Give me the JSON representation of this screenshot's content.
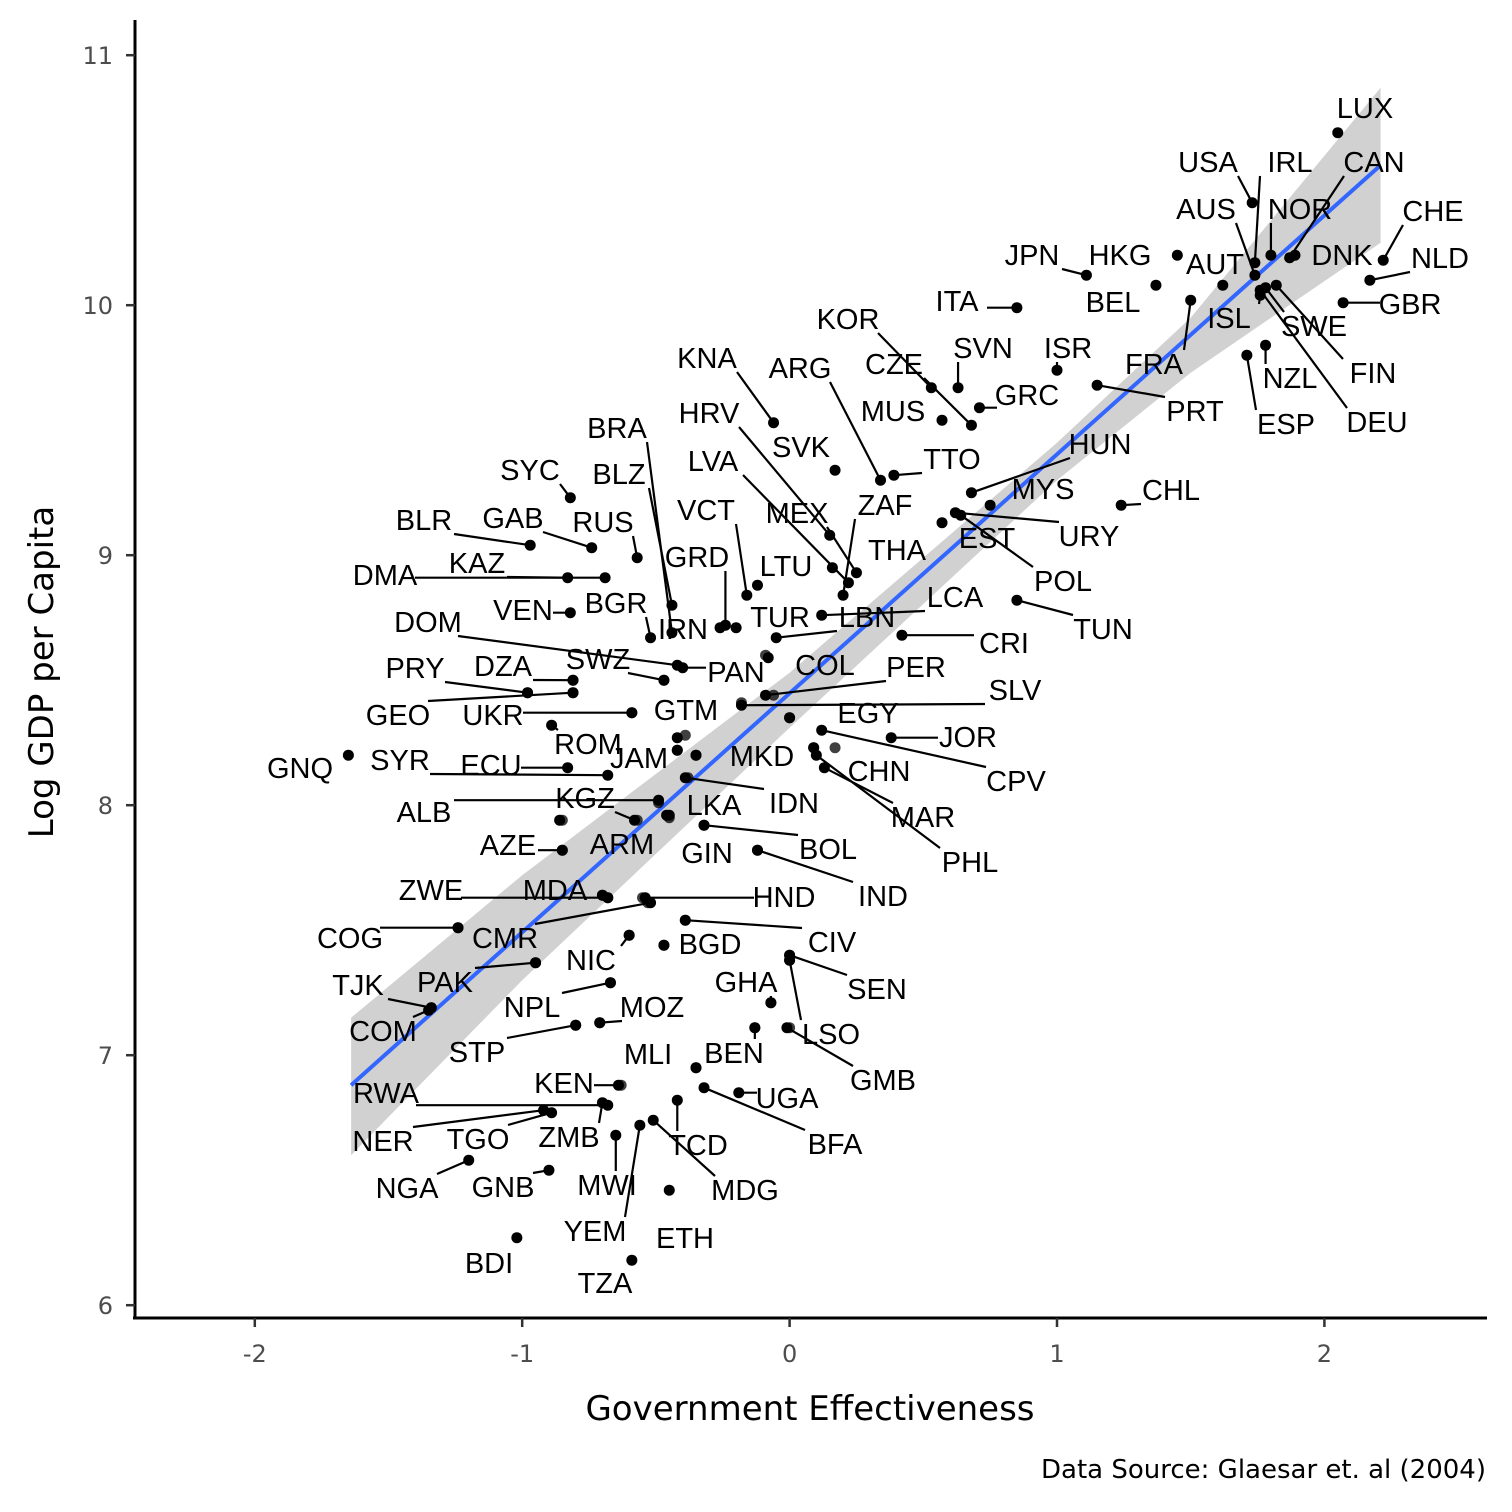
{
  "chart_data": {
    "type": "scatter",
    "xlabel": "Government Effectiveness",
    "ylabel": "Log GDP per Capita",
    "caption": "Data Source: Glaesar et. al (2004)",
    "xlim": [
      -2.45,
      2.55
    ],
    "ylim": [
      5.95,
      11.15
    ],
    "x_ticks": [
      -2,
      -1,
      0,
      1,
      2
    ],
    "x_tick_labels": [
      "-2",
      "-1",
      "0",
      "1",
      "2"
    ],
    "y_ticks": [
      6,
      7,
      8,
      9,
      10,
      11
    ],
    "y_tick_labels": [
      "6",
      "7",
      "8",
      "9",
      "10",
      "11"
    ],
    "grid": false,
    "colors": {
      "fit_line": "#3366ff",
      "confidence_band": "#cccccc",
      "points": "#000000"
    },
    "fit_line": {
      "x_start": -1.64,
      "y_start": 6.88,
      "x_end": 2.21,
      "y_end": 10.56
    },
    "confidence_band": {
      "x": [
        -1.64,
        -1.0,
        0.0,
        1.0,
        1.5,
        2.21
      ],
      "y_upper": [
        7.15,
        7.72,
        8.53,
        9.45,
        9.95,
        10.87
      ],
      "y_lower": [
        6.6,
        7.3,
        8.31,
        9.3,
        9.73,
        10.25
      ]
    },
    "points": [
      {
        "label": "LUX",
        "x": 2.05,
        "y": 10.69
      },
      {
        "label": "USA",
        "x": 1.73,
        "y": 10.41
      },
      {
        "label": "IRL",
        "x": 1.74,
        "y": 10.17
      },
      {
        "label": "CAN",
        "x": 1.87,
        "y": 10.19
      },
      {
        "label": "AUS",
        "x": 1.74,
        "y": 10.12
      },
      {
        "label": "NOR",
        "x": 1.8,
        "y": 10.2
      },
      {
        "label": "CHE",
        "x": 2.22,
        "y": 10.18
      },
      {
        "label": "DNK",
        "x": 1.89,
        "y": 10.2
      },
      {
        "label": "NLD",
        "x": 2.17,
        "y": 10.1
      },
      {
        "label": "JPN",
        "x": 1.11,
        "y": 10.12
      },
      {
        "label": "HKG",
        "x": 1.45,
        "y": 10.2
      },
      {
        "label": "AUT",
        "x": 1.62,
        "y": 10.08
      },
      {
        "label": "BEL",
        "x": 1.37,
        "y": 10.08
      },
      {
        "label": "GBR",
        "x": 2.07,
        "y": 10.01
      },
      {
        "label": "ITA",
        "x": 0.85,
        "y": 9.99
      },
      {
        "label": "ISL",
        "x": 1.76,
        "y": 10.04
      },
      {
        "label": "SWE",
        "x": 1.78,
        "y": 10.07
      },
      {
        "label": "FIN",
        "x": 1.82,
        "y": 10.08
      },
      {
        "label": "KOR",
        "x": 0.53,
        "y": 9.67
      },
      {
        "label": "SVN",
        "x": 0.63,
        "y": 9.67
      },
      {
        "label": "ISR",
        "x": 1.0,
        "y": 9.74
      },
      {
        "label": "FRA",
        "x": 1.5,
        "y": 10.02
      },
      {
        "label": "NZL",
        "x": 1.78,
        "y": 9.84
      },
      {
        "label": "ESP",
        "x": 1.71,
        "y": 9.8
      },
      {
        "label": "DEU",
        "x": 1.76,
        "y": 10.06
      },
      {
        "label": "KNA",
        "x": -0.06,
        "y": 9.53
      },
      {
        "label": "ARG",
        "x": 0.34,
        "y": 9.3
      },
      {
        "label": "CZE",
        "x": 0.68,
        "y": 9.52
      },
      {
        "label": "GRC",
        "x": 0.71,
        "y": 9.59
      },
      {
        "label": "MUS",
        "x": 0.57,
        "y": 9.54
      },
      {
        "label": "PRT",
        "x": 1.15,
        "y": 9.68
      },
      {
        "label": "HRV",
        "x": 0.15,
        "y": 9.08
      },
      {
        "label": "SVK",
        "x": 0.17,
        "y": 9.34
      },
      {
        "label": "TTO",
        "x": 0.39,
        "y": 9.32
      },
      {
        "label": "HUN",
        "x": 0.68,
        "y": 9.25
      },
      {
        "label": "BRA",
        "x": -0.44,
        "y": 8.69
      },
      {
        "label": "LVA",
        "x": 0.22,
        "y": 8.89
      },
      {
        "label": "MYS",
        "x": 0.75,
        "y": 9.2
      },
      {
        "label": "CHL",
        "x": 1.24,
        "y": 9.2
      },
      {
        "label": "SYC",
        "x": -0.82,
        "y": 9.23
      },
      {
        "label": "BLZ",
        "x": -0.44,
        "y": 8.8
      },
      {
        "label": "VCT",
        "x": -0.16,
        "y": 8.84
      },
      {
        "label": "MEX",
        "x": 0.25,
        "y": 8.93
      },
      {
        "label": "ZAF",
        "x": 0.2,
        "y": 8.84
      },
      {
        "label": "URY",
        "x": 0.62,
        "y": 9.17
      },
      {
        "label": "BLR",
        "x": -0.97,
        "y": 9.04
      },
      {
        "label": "GAB",
        "x": -0.74,
        "y": 9.03
      },
      {
        "label": "RUS",
        "x": -0.57,
        "y": 8.99
      },
      {
        "label": "EST",
        "x": 0.57,
        "y": 9.13
      },
      {
        "label": "GRD",
        "x": -0.24,
        "y": 8.72
      },
      {
        "label": "LTU",
        "x": -0.12,
        "y": 8.88
      },
      {
        "label": "THA",
        "x": 0.16,
        "y": 8.95
      },
      {
        "label": "DMA",
        "x": -0.69,
        "y": 8.91
      },
      {
        "label": "KAZ",
        "x": -0.83,
        "y": 8.91
      },
      {
        "label": "POL",
        "x": 0.64,
        "y": 9.16
      },
      {
        "label": "LCA",
        "x": 0.12,
        "y": 8.76
      },
      {
        "label": "TUN",
        "x": 0.85,
        "y": 8.82
      },
      {
        "label": "VEN",
        "x": -0.82,
        "y": 8.77
      },
      {
        "label": "BGR",
        "x": -0.52,
        "y": 8.67
      },
      {
        "label": "IRN",
        "x": -0.26,
        "y": 8.71
      },
      {
        "label": "TUR",
        "x": -0.2,
        "y": 8.71
      },
      {
        "label": "LBN",
        "x": -0.05,
        "y": 8.67
      },
      {
        "label": "CRI",
        "x": 0.42,
        "y": 8.68
      },
      {
        "label": "DOM",
        "x": -0.42,
        "y": 8.56
      },
      {
        "label": "PAN",
        "x": -0.4,
        "y": 8.55
      },
      {
        "label": "PRY",
        "x": -0.98,
        "y": 8.45
      },
      {
        "label": "DZA",
        "x": -0.81,
        "y": 8.5
      },
      {
        "label": "SWZ",
        "x": -0.47,
        "y": 8.5
      },
      {
        "label": "COL",
        "x": -0.08,
        "y": 8.59
      },
      {
        "label": "PER",
        "x": -0.09,
        "y": 8.44
      },
      {
        "label": "SLV",
        "x": -0.18,
        "y": 8.4
      },
      {
        "label": "GEO",
        "x": -0.81,
        "y": 8.45
      },
      {
        "label": "UKR",
        "x": -0.59,
        "y": 8.37
      },
      {
        "label": "GTM",
        "x": -0.42,
        "y": 8.27
      },
      {
        "label": "EGY",
        "x": 0.0,
        "y": 8.35
      },
      {
        "label": "ROM",
        "x": -0.89,
        "y": 8.32
      },
      {
        "label": "MKD",
        "x": -0.35,
        "y": 8.2
      },
      {
        "label": "JOR",
        "x": 0.38,
        "y": 8.27
      },
      {
        "label": "GNQ",
        "x": -1.65,
        "y": 8.2
      },
      {
        "label": "SYR",
        "x": -0.68,
        "y": 8.12
      },
      {
        "label": "ECU",
        "x": -0.83,
        "y": 8.15
      },
      {
        "label": "JAM",
        "x": -0.42,
        "y": 8.22
      },
      {
        "label": "CHN",
        "x": 0.09,
        "y": 8.23
      },
      {
        "label": "CPV",
        "x": 0.12,
        "y": 8.3
      },
      {
        "label": "ALB",
        "x": -0.49,
        "y": 8.02
      },
      {
        "label": "KGZ",
        "x": -0.58,
        "y": 7.94
      },
      {
        "label": "IDN",
        "x": -0.39,
        "y": 8.11
      },
      {
        "label": "LKA",
        "x": -0.46,
        "y": 7.96
      },
      {
        "label": "MAR",
        "x": 0.13,
        "y": 8.15
      },
      {
        "label": "PHL",
        "x": 0.1,
        "y": 8.2
      },
      {
        "label": "AZE",
        "x": -0.85,
        "y": 7.82
      },
      {
        "label": "ARM",
        "x": -0.86,
        "y": 7.94
      },
      {
        "label": "GIN",
        "x": -0.45,
        "y": 7.96
      },
      {
        "label": "BOL",
        "x": -0.32,
        "y": 7.92
      },
      {
        "label": "IND",
        "x": -0.12,
        "y": 7.82
      },
      {
        "label": "ZWE",
        "x": -0.68,
        "y": 7.63
      },
      {
        "label": "MDA",
        "x": -0.7,
        "y": 7.64
      },
      {
        "label": "HND",
        "x": -0.54,
        "y": 7.63
      },
      {
        "label": "COG",
        "x": -1.24,
        "y": 7.51
      },
      {
        "label": "CMR",
        "x": -0.52,
        "y": 7.61
      },
      {
        "label": "BGD",
        "x": -0.47,
        "y": 7.44
      },
      {
        "label": "CIV",
        "x": -0.39,
        "y": 7.54
      },
      {
        "label": "TJK",
        "x": -1.34,
        "y": 7.19
      },
      {
        "label": "PAK",
        "x": -0.95,
        "y": 7.37
      },
      {
        "label": "NIC",
        "x": -0.6,
        "y": 7.48
      },
      {
        "label": "SEN",
        "x": 0.0,
        "y": 7.4
      },
      {
        "label": "COM",
        "x": -1.35,
        "y": 7.18
      },
      {
        "label": "NPL",
        "x": -0.67,
        "y": 7.29
      },
      {
        "label": "GHA",
        "x": -0.07,
        "y": 7.21
      },
      {
        "label": "LSO",
        "x": 0.0,
        "y": 7.38
      },
      {
        "label": "STP",
        "x": -0.8,
        "y": 7.12
      },
      {
        "label": "MOZ",
        "x": -0.71,
        "y": 7.13
      },
      {
        "label": "GMB",
        "x": -0.01,
        "y": 7.11
      },
      {
        "label": "MLI",
        "x": -0.35,
        "y": 6.95
      },
      {
        "label": "BEN",
        "x": -0.13,
        "y": 7.11
      },
      {
        "label": "RWA",
        "x": -0.68,
        "y": 6.8
      },
      {
        "label": "KEN",
        "x": -0.64,
        "y": 6.88
      },
      {
        "label": "UGA",
        "x": -0.19,
        "y": 6.85
      },
      {
        "label": "BFA",
        "x": -0.32,
        "y": 6.87
      },
      {
        "label": "NER",
        "x": -0.92,
        "y": 6.78
      },
      {
        "label": "TGO",
        "x": -0.89,
        "y": 6.77
      },
      {
        "label": "ZMB",
        "x": -0.7,
        "y": 6.81
      },
      {
        "label": "TCD",
        "x": -0.42,
        "y": 6.82
      },
      {
        "label": "MWI",
        "x": -0.65,
        "y": 6.68
      },
      {
        "label": "MDG",
        "x": -0.51,
        "y": 6.74
      },
      {
        "label": "NGA",
        "x": -1.2,
        "y": 6.58
      },
      {
        "label": "GNB",
        "x": -0.9,
        "y": 6.54
      },
      {
        "label": "YEM",
        "x": -0.56,
        "y": 6.72
      },
      {
        "label": "ETH",
        "x": -0.45,
        "y": 6.46
      },
      {
        "label": "BDI",
        "x": -1.02,
        "y": 6.27
      },
      {
        "label": "TZA",
        "x": -0.59,
        "y": 6.18
      }
    ],
    "unlabeled_points": [
      {
        "x": 0.0,
        "y": 8.35
      },
      {
        "x": -0.09,
        "y": 8.6
      },
      {
        "x": 0.09,
        "y": 8.23
      },
      {
        "x": 0.17,
        "y": 8.23
      },
      {
        "x": -0.18,
        "y": 8.41
      },
      {
        "x": -0.06,
        "y": 8.44
      },
      {
        "x": -0.59,
        "y": 8.37
      },
      {
        "x": -0.81,
        "y": 8.45
      },
      {
        "x": -0.98,
        "y": 8.45
      },
      {
        "x": -0.81,
        "y": 8.5
      },
      {
        "x": -0.47,
        "y": 8.5
      },
      {
        "x": -0.39,
        "y": 8.28
      },
      {
        "x": -0.42,
        "y": 8.22
      },
      {
        "x": -0.35,
        "y": 8.2
      },
      {
        "x": -0.38,
        "y": 8.11
      },
      {
        "x": -0.49,
        "y": 8.01
      },
      {
        "x": -0.45,
        "y": 7.95
      },
      {
        "x": -0.85,
        "y": 7.94
      },
      {
        "x": -0.57,
        "y": 7.94
      },
      {
        "x": -0.32,
        "y": 7.92
      },
      {
        "x": -0.12,
        "y": 7.82
      },
      {
        "x": -0.85,
        "y": 7.82
      },
      {
        "x": -0.7,
        "y": 7.64
      },
      {
        "x": -0.68,
        "y": 7.63
      },
      {
        "x": -0.55,
        "y": 7.63
      },
      {
        "x": -0.53,
        "y": 7.61
      },
      {
        "x": -0.39,
        "y": 7.54
      },
      {
        "x": -1.24,
        "y": 7.51
      },
      {
        "x": -0.6,
        "y": 7.48
      },
      {
        "x": -0.47,
        "y": 7.44
      },
      {
        "x": 0.0,
        "y": 7.4
      },
      {
        "x": 0.0,
        "y": 7.38
      },
      {
        "x": -0.95,
        "y": 7.37
      },
      {
        "x": -0.67,
        "y": 7.29
      },
      {
        "x": -0.07,
        "y": 7.21
      },
      {
        "x": -1.34,
        "y": 7.19
      },
      {
        "x": -0.8,
        "y": 7.12
      },
      {
        "x": -0.71,
        "y": 7.13
      },
      {
        "x": -0.13,
        "y": 7.11
      },
      {
        "x": 0.0,
        "y": 7.11
      },
      {
        "x": -0.35,
        "y": 6.95
      },
      {
        "x": -0.63,
        "y": 6.88
      }
    ]
  }
}
